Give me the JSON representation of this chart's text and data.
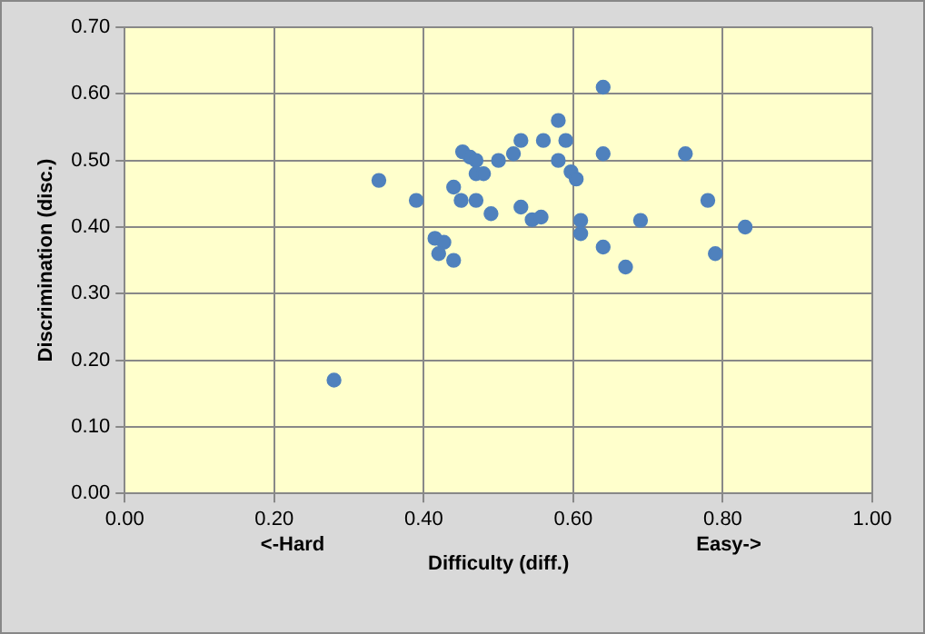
{
  "chart_data": {
    "type": "scatter",
    "xlabel": "Difficulty (diff.)",
    "ylabel": "Discrimination (disc.)",
    "annotations": [
      "<-Hard",
      "Easy->"
    ],
    "x": [
      0.28,
      0.34,
      0.39,
      0.415,
      0.427,
      0.42,
      0.44,
      0.44,
      0.45,
      0.452,
      0.462,
      0.47,
      0.47,
      0.47,
      0.48,
      0.49,
      0.5,
      0.52,
      0.53,
      0.53,
      0.545,
      0.557,
      0.56,
      0.58,
      0.59,
      0.58,
      0.597,
      0.604,
      0.61,
      0.61,
      0.64,
      0.64,
      0.64,
      0.67,
      0.69,
      0.75,
      0.78,
      0.79,
      0.83
    ],
    "values": [
      0.17,
      0.47,
      0.44,
      0.383,
      0.377,
      0.36,
      0.35,
      0.46,
      0.44,
      0.513,
      0.505,
      0.5,
      0.44,
      0.48,
      0.48,
      0.42,
      0.5,
      0.51,
      0.53,
      0.43,
      0.411,
      0.415,
      0.53,
      0.56,
      0.53,
      0.5,
      0.483,
      0.472,
      0.41,
      0.39,
      0.61,
      0.51,
      0.37,
      0.34,
      0.41,
      0.51,
      0.44,
      0.36,
      0.4
    ],
    "color": "#4f81bd",
    "marker": "circle",
    "grid": true,
    "legend": false,
    "xlim": [
      0,
      1
    ],
    "xticks": [
      {
        "value": 0,
        "label": "0.00"
      },
      {
        "value": 0.2,
        "label": "0.20"
      },
      {
        "value": 0.4,
        "label": "0.40"
      },
      {
        "value": 0.6,
        "label": "0.60"
      },
      {
        "value": 0.8,
        "label": "0.80"
      },
      {
        "value": 1,
        "label": "1.00"
      }
    ],
    "ylim": [
      0,
      0.7
    ],
    "yticks": [
      {
        "value": 0,
        "label": "0.00"
      },
      {
        "value": 0.1,
        "label": "0.10"
      },
      {
        "value": 0.2,
        "label": "0.20"
      },
      {
        "value": 0.3,
        "label": "0.30"
      },
      {
        "value": 0.4,
        "label": "0.40"
      },
      {
        "value": 0.5,
        "label": "0.50"
      },
      {
        "value": 0.6,
        "label": "0.60"
      },
      {
        "value": 0.7,
        "label": "0.70"
      }
    ]
  }
}
